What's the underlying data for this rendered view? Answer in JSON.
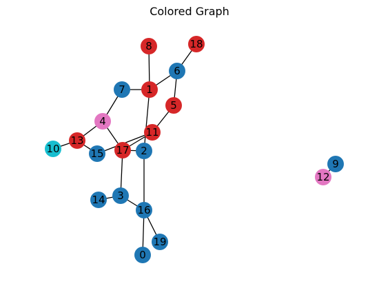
{
  "title": "Colored Graph",
  "colors": {
    "blue": "#1f77b4",
    "red": "#d62728",
    "pink": "#e377c2",
    "cyan": "#17becf"
  },
  "nodes": [
    {
      "id": "0",
      "color": "blue"
    },
    {
      "id": "1",
      "color": "red"
    },
    {
      "id": "2",
      "color": "blue"
    },
    {
      "id": "3",
      "color": "blue"
    },
    {
      "id": "4",
      "color": "pink"
    },
    {
      "id": "5",
      "color": "red"
    },
    {
      "id": "6",
      "color": "blue"
    },
    {
      "id": "7",
      "color": "blue"
    },
    {
      "id": "8",
      "color": "red"
    },
    {
      "id": "9",
      "color": "blue"
    },
    {
      "id": "10",
      "color": "cyan"
    },
    {
      "id": "11",
      "color": "red"
    },
    {
      "id": "12",
      "color": "pink"
    },
    {
      "id": "13",
      "color": "red"
    },
    {
      "id": "14",
      "color": "blue"
    },
    {
      "id": "15",
      "color": "blue"
    },
    {
      "id": "16",
      "color": "blue"
    },
    {
      "id": "17",
      "color": "red"
    },
    {
      "id": "18",
      "color": "red"
    },
    {
      "id": "19",
      "color": "blue"
    }
  ],
  "edges": [
    [
      "8",
      "1"
    ],
    [
      "1",
      "7"
    ],
    [
      "1",
      "6"
    ],
    [
      "1",
      "2"
    ],
    [
      "6",
      "18"
    ],
    [
      "6",
      "5"
    ],
    [
      "5",
      "11"
    ],
    [
      "11",
      "17"
    ],
    [
      "11",
      "15"
    ],
    [
      "7",
      "4"
    ],
    [
      "4",
      "13"
    ],
    [
      "4",
      "17"
    ],
    [
      "13",
      "10"
    ],
    [
      "13",
      "15"
    ],
    [
      "17",
      "2"
    ],
    [
      "17",
      "3"
    ],
    [
      "2",
      "16"
    ],
    [
      "3",
      "14"
    ],
    [
      "3",
      "16"
    ],
    [
      "16",
      "0"
    ],
    [
      "16",
      "19"
    ],
    [
      "9",
      "12"
    ]
  ]
}
